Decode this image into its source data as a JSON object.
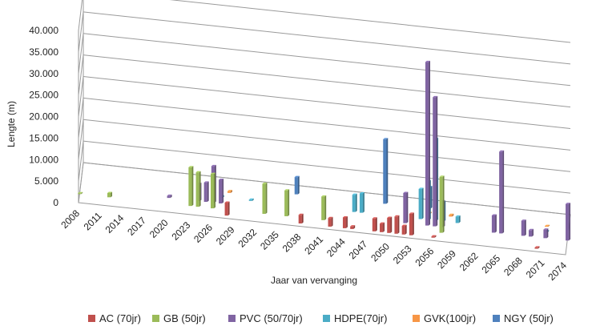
{
  "chart_data": {
    "type": "bar",
    "subtype": "3d-clustered-column",
    "title": "",
    "xlabel": "Jaar van vervanging",
    "ylabel": "Lengte (m)",
    "ylim": [
      0,
      40000
    ],
    "y_ticks": [
      "0",
      "5.000",
      "10.000",
      "15.000",
      "20.000",
      "25.000",
      "30.000",
      "35.000",
      "40.000"
    ],
    "x_tick_labels": [
      "2008",
      "2011",
      "2014",
      "2017",
      "2020",
      "2023",
      "2026",
      "2029",
      "2032",
      "2035",
      "2038",
      "2041",
      "2044",
      "2047",
      "2050",
      "2053",
      "2056",
      "2059",
      "2062",
      "2065",
      "2068",
      "2071",
      "2074"
    ],
    "grid": true,
    "legend_position": "bottom",
    "series": [
      {
        "name": "AC (70jr)",
        "color": "#c0504d",
        "points": [
          [
            2028,
            3000
          ],
          [
            2038,
            2000
          ],
          [
            2042,
            2000
          ],
          [
            2044,
            2500
          ],
          [
            2045,
            600
          ],
          [
            2048,
            3000
          ],
          [
            2049,
            2000
          ],
          [
            2050,
            3500
          ],
          [
            2051,
            4000
          ],
          [
            2052,
            2000
          ],
          [
            2053,
            5000
          ],
          [
            2056,
            300
          ],
          [
            2070,
            300
          ]
        ]
      },
      {
        "name": "GB (50jr)",
        "color": "#9bbb59",
        "points": [
          [
            2008,
            200
          ],
          [
            2012,
            1000
          ],
          [
            2023,
            9000
          ],
          [
            2024,
            8000
          ],
          [
            2026,
            8000
          ],
          [
            2033,
            7000
          ],
          [
            2036,
            6000
          ],
          [
            2041,
            5500
          ],
          [
            2057,
            13000
          ]
        ]
      },
      {
        "name": "PVC (50/70jr)",
        "color": "#8064a2",
        "points": [
          [
            2020,
            500
          ],
          [
            2024,
            4000
          ],
          [
            2025,
            4500
          ],
          [
            2026,
            8500
          ],
          [
            2027,
            5500
          ],
          [
            2052,
            7000
          ],
          [
            2055,
            38000
          ],
          [
            2056,
            30000
          ],
          [
            2057,
            6000
          ],
          [
            2064,
            4000
          ],
          [
            2065,
            19000
          ],
          [
            2068,
            3500
          ],
          [
            2069,
            1500
          ],
          [
            2071,
            2000
          ],
          [
            2074,
            8500
          ]
        ]
      },
      {
        "name": "HDPE(70jr)",
        "color": "#4bacc6",
        "points": [
          [
            2027,
            300
          ],
          [
            2031,
            300
          ],
          [
            2045,
            4000
          ],
          [
            2046,
            4500
          ],
          [
            2054,
            7000
          ],
          [
            2055,
            9000
          ],
          [
            2056,
            19000
          ],
          [
            2057,
            4500
          ],
          [
            2059,
            1500
          ],
          [
            2071,
            300
          ]
        ]
      },
      {
        "name": "GVK(100jr)",
        "color": "#f79646",
        "points": [
          [
            2028,
            400
          ],
          [
            2055,
            300
          ],
          [
            2058,
            400
          ],
          [
            2071,
            200
          ]
        ]
      },
      {
        "name": "NGY (50jr)",
        "color": "#4f81bd",
        "points": [
          [
            2037,
            4000
          ],
          [
            2049,
            15000
          ],
          [
            2055,
            5000
          ]
        ]
      }
    ]
  }
}
